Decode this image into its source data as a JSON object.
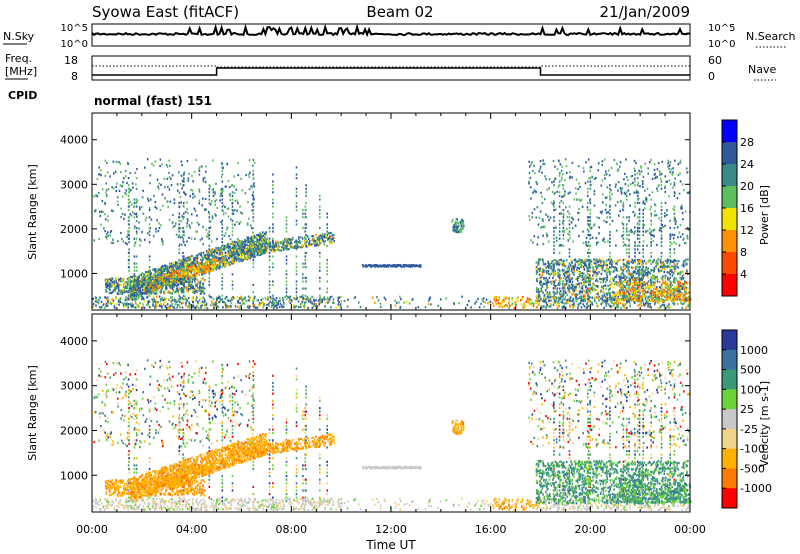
{
  "header": {
    "station": "Syowa East (fitACF)",
    "beam": "Beam 02",
    "date": "21/Jan/2009"
  },
  "top_panels": {
    "nsky_label": "N.Sky",
    "nsearch_label": "N.Search",
    "nsky_ticks": [
      "10^5",
      "10^0"
    ],
    "freq_label": "Freq.",
    "freq_unit": "[MHz]",
    "freq_ticks": [
      "18",
      "8"
    ],
    "nave_label": "Nave",
    "nave_ticks": [
      "60",
      "0"
    ],
    "cpid_label": "CPID",
    "cpid_value": "normal (fast) 151"
  },
  "chart_data": [
    {
      "type": "heatmap",
      "name": "power",
      "ylabel": "Slant Range [km]",
      "ylim": [
        180,
        4600
      ],
      "yticks": [
        "1000",
        "2000",
        "3000",
        "4000"
      ],
      "xlim_hours": [
        0,
        24
      ],
      "xticks": [
        "00:00",
        "04:00",
        "08:00",
        "12:00",
        "16:00",
        "20:00",
        "00:00"
      ],
      "colorbar": {
        "label": "Power [dB]",
        "ticks": [
          "4",
          "8",
          "12",
          "16",
          "20",
          "24",
          "28"
        ],
        "colors": [
          "#0000ff",
          "#2e5a9c",
          "#3a8a8a",
          "#5cbf5c",
          "#f2e200",
          "#ff9100",
          "#ff4800",
          "#ff0000"
        ]
      }
    },
    {
      "type": "heatmap",
      "name": "velocity",
      "ylabel": "Slant Range [km]",
      "ylim": [
        180,
        4600
      ],
      "yticks": [
        "1000",
        "2000",
        "3000",
        "4000"
      ],
      "xlim_hours": [
        0,
        24
      ],
      "xticks": [
        "00:00",
        "04:00",
        "08:00",
        "12:00",
        "16:00",
        "20:00",
        "00:00"
      ],
      "colorbar": {
        "label": "Velocity [m s-1]",
        "ticks": [
          "1000",
          "500",
          "100",
          "25",
          "-25",
          "-100",
          "-500",
          "-1000"
        ],
        "colors": [
          "#2a3a9c",
          "#3a72a0",
          "#3a9a78",
          "#6cd23a",
          "#c8c8c8",
          "#f2d28a",
          "#ffb000",
          "#ff7a00",
          "#ff0000"
        ]
      }
    }
  ],
  "xlabel": "Time UT"
}
